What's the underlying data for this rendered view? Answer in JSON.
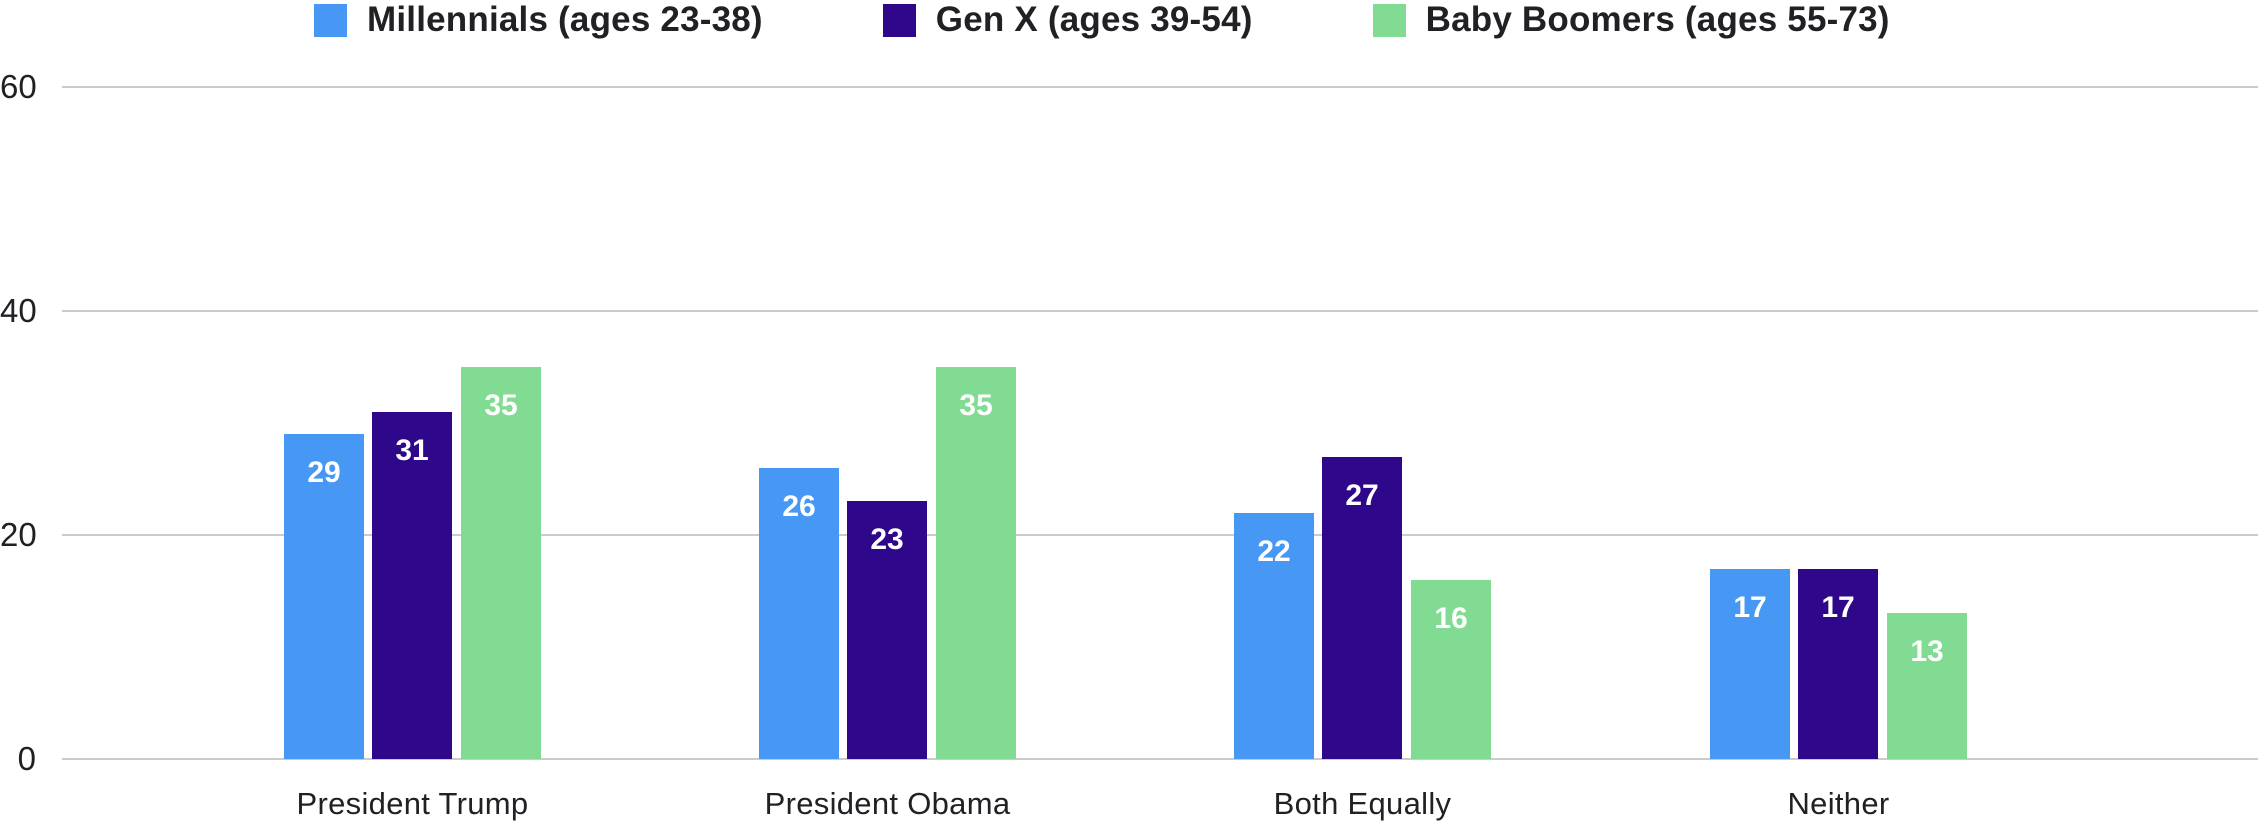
{
  "chart_data": {
    "type": "bar",
    "title": "",
    "categories": [
      "President Trump",
      "President Obama",
      "Both Equally",
      "Neither"
    ],
    "series": [
      {
        "name": "Millennials (ages 23-38)",
        "color": "#4797f4",
        "values": [
          29,
          26,
          22,
          17
        ]
      },
      {
        "name": "Gen X (ages 39-54)",
        "color": "#2f078a",
        "values": [
          31,
          23,
          27,
          17
        ]
      },
      {
        "name": "Baby Boomers (ages 55-73)",
        "color": "#82db93",
        "values": [
          35,
          35,
          16,
          13
        ]
      }
    ],
    "xlabel": "",
    "ylabel": "",
    "ylim": [
      0,
      60
    ],
    "yticks": [
      "0",
      "20",
      "40",
      "60"
    ],
    "grid": "horizontal",
    "legend_position": "top",
    "value_labels": "inside-top-white",
    "colors": {
      "background": "#ffffff",
      "text": "#202124",
      "gridline": "#cbcbcb",
      "value_label": "#ffffff"
    }
  }
}
